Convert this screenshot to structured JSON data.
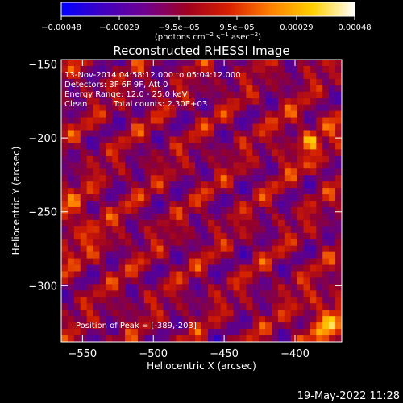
{
  "chart_data": {
    "type": "heatmap",
    "title": "Reconstructed RHESSI Image",
    "xlabel": "Heliocentric X (arcsec)",
    "ylabel": "Heliocentric Y (arcsec)",
    "xlim": [
      -565,
      -367
    ],
    "ylim": [
      -338,
      -147
    ],
    "x_ticks": [
      -550,
      -500,
      -450,
      -400
    ],
    "x_tick_labels": [
      "−550",
      "−500",
      "−450",
      "−400"
    ],
    "y_ticks": [
      -150,
      -200,
      -250,
      -300
    ],
    "y_tick_labels": [
      "−150",
      "−200",
      "−250",
      "−300"
    ],
    "colorbar": {
      "ticks": [
        -0.00048,
        -0.00029,
        -9.5e-05,
        9.5e-05,
        0.00029,
        0.00048
      ],
      "tick_labels": [
        "−0.00048",
        "−0.00029",
        "−9.5e−05",
        "9.5e−05",
        "0.00029",
        "0.00048"
      ],
      "units": [
        "(photons cm",
        "−2",
        " s",
        "−1",
        " asec",
        "−2",
        ")"
      ],
      "colormap": [
        "#0000ff",
        "#4000c0",
        "#700090",
        "#a00020",
        "#d82000",
        "#ff8000",
        "#ffd000",
        "#ffffff"
      ]
    },
    "annotations": {
      "time": "13-Nov-2014 04:58:12.000 to 05:04:12.000",
      "detectors": "Detectors: 3F 6F 9F, Att 0",
      "energy": "Energy Range: 12.0 - 25.0 keV",
      "method": "Clean",
      "counts": "Total counts: 2.30E+03",
      "peak": "Position of Peak = [-389,-203]"
    },
    "peak": [
      -389,
      -203
    ]
  },
  "footer": {
    "timestamp": "19-May-2022 11:28"
  }
}
